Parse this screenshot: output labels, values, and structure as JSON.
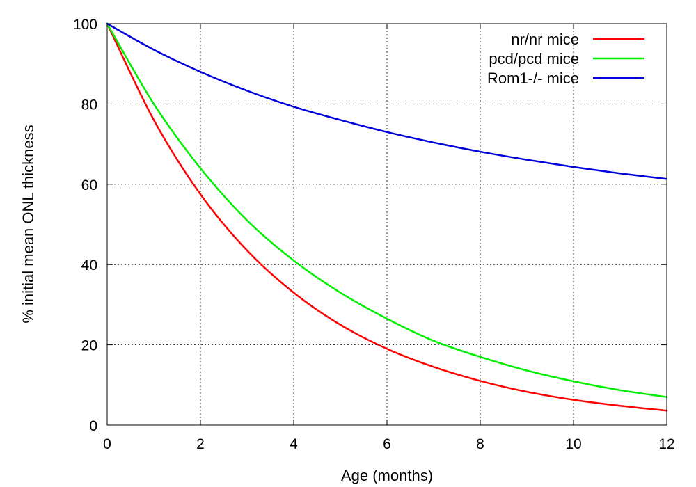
{
  "chart_data": {
    "type": "line",
    "xlabel": "Age (months)",
    "ylabel": "% initial mean ONL thickness",
    "xlim": [
      0,
      12
    ],
    "ylim": [
      0,
      100
    ],
    "xticks": [
      0,
      2,
      4,
      6,
      8,
      10,
      12
    ],
    "yticks": [
      0,
      20,
      40,
      60,
      80,
      100
    ],
    "grid": true,
    "legend_position": "top-right",
    "x": [
      0,
      1,
      2,
      3,
      4,
      5,
      6,
      7,
      8,
      9,
      10,
      11,
      12
    ],
    "series": [
      {
        "name": "nr/nr mice",
        "color": "#ff0000",
        "values": [
          100,
          76,
          57.5,
          43.5,
          33,
          25,
          19,
          14.5,
          11,
          8.3,
          6.3,
          4.8,
          3.6
        ]
      },
      {
        "name": "pcd/pcd mice",
        "color": "#00ee00",
        "values": [
          100,
          80,
          64,
          51,
          41,
          33,
          26.5,
          21,
          17,
          13.6,
          10.9,
          8.7,
          7
        ]
      },
      {
        "name": "Rom1-/- mice",
        "color": "#0000dd",
        "values": [
          100,
          93.5,
          88,
          83.3,
          79.3,
          76,
          73,
          70.4,
          68.1,
          66.1,
          64.3,
          62.7,
          61.3
        ]
      }
    ]
  }
}
